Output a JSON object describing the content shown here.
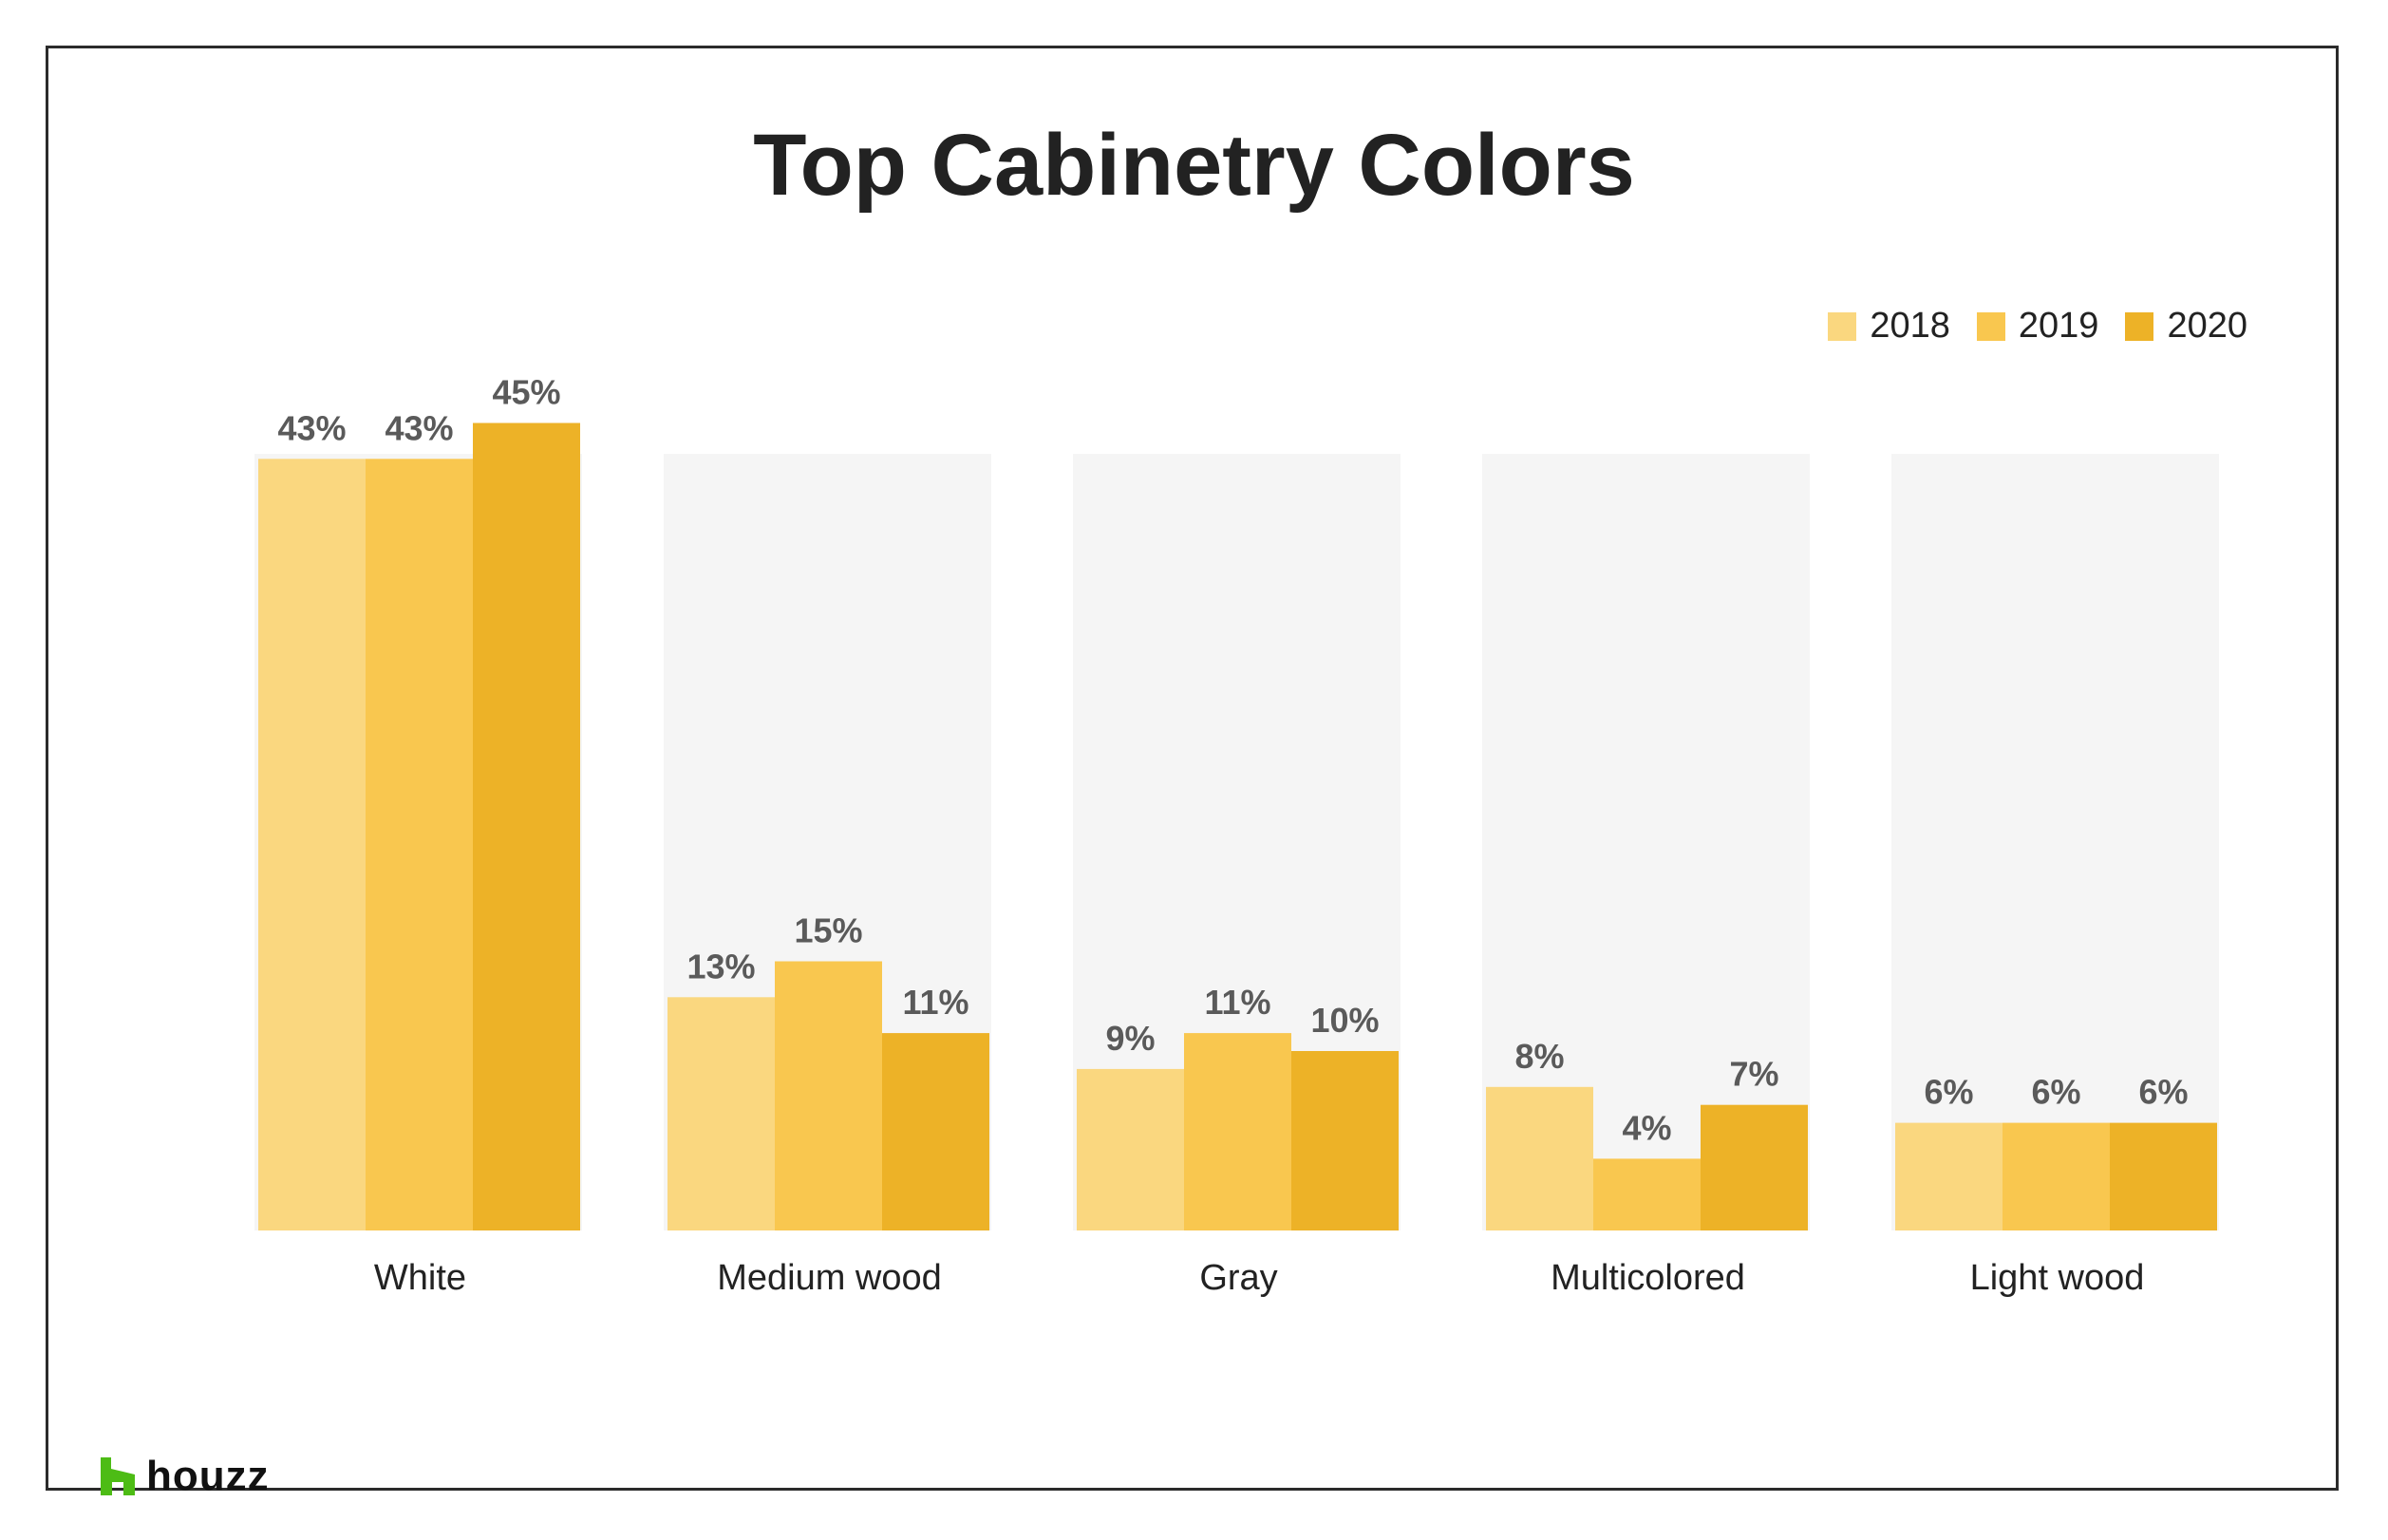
{
  "chart_data": {
    "type": "bar",
    "title": "Top Cabinetry Colors",
    "categories": [
      "White",
      "Medium wood",
      "Gray",
      "Multicolored",
      "Light wood"
    ],
    "series": [
      {
        "name": "2018",
        "color": "#FAD77F",
        "values": [
          43,
          13,
          9,
          8,
          6
        ]
      },
      {
        "name": "2019",
        "color": "#F9C74F",
        "values": [
          43,
          15,
          11,
          4,
          6
        ]
      },
      {
        "name": "2020",
        "color": "#EDB227",
        "values": [
          45,
          11,
          10,
          7,
          6
        ]
      }
    ],
    "value_labels": [
      [
        "43%",
        "13%",
        "9%",
        "8%",
        "6%"
      ],
      [
        "43%",
        "15%",
        "11%",
        "4%",
        "6%"
      ],
      [
        "45%",
        "11%",
        "10%",
        "7%",
        "6%"
      ]
    ],
    "legend_position": "top-right",
    "grid": false,
    "ylim": [
      0,
      100
    ],
    "background_panel_color": "#F5F5F5"
  },
  "branding": {
    "logo_text": "houzz",
    "logo_color": "#4DBC15"
  }
}
